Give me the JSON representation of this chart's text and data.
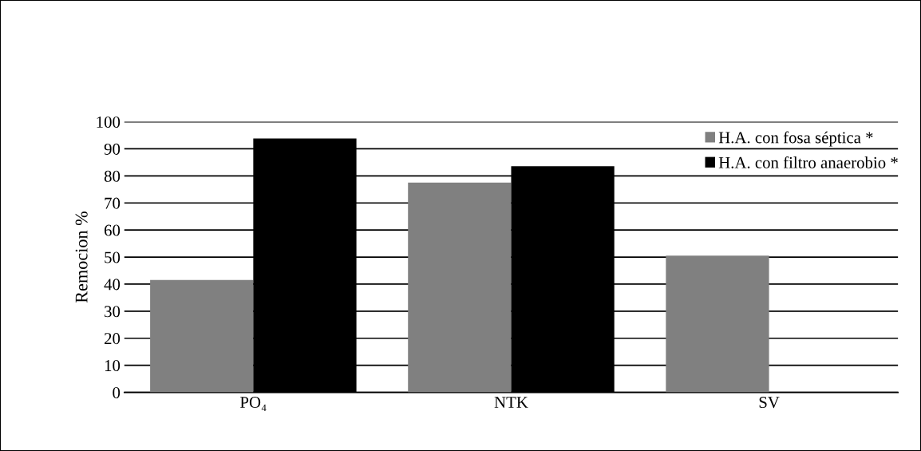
{
  "chart_data": {
    "type": "bar",
    "ylabel": "Remocion %",
    "categories": [
      "PO₄",
      "NTK",
      "SV"
    ],
    "series": [
      {
        "name": "H.A. con fosa séptica *",
        "color": "#808080",
        "values": [
          41.5,
          77.5,
          50.5
        ]
      },
      {
        "name": "H.A. con filtro anaerobio *",
        "color": "#000000",
        "values": [
          93.8,
          83.6,
          null
        ]
      }
    ],
    "ylim": [
      0,
      100
    ],
    "yticks": [
      0,
      10,
      20,
      30,
      40,
      50,
      60,
      70,
      80,
      90,
      100
    ],
    "grid": "y",
    "legend": "top right"
  }
}
